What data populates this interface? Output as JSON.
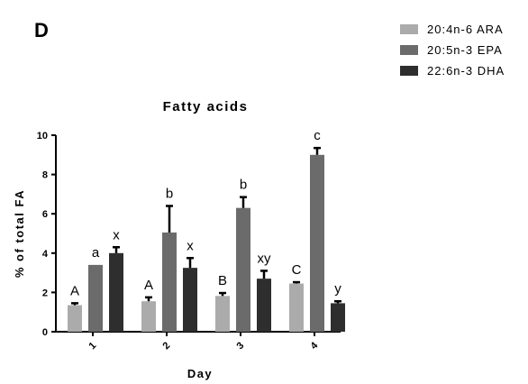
{
  "panel_label": "D",
  "chart_data": {
    "type": "bar",
    "title": "Fatty acids",
    "xlabel": "Day",
    "ylabel": "% of total FA",
    "categories": [
      "1",
      "2",
      "3",
      "4"
    ],
    "ylim": [
      0,
      10
    ],
    "yticks": [
      "0",
      "2",
      "4",
      "6",
      "8",
      "10"
    ],
    "grid": false,
    "legend_position": "top-right",
    "series": [
      {
        "name": "20:4n-6 ARA",
        "color": "#ababab",
        "values": [
          1.35,
          1.55,
          1.82,
          2.45
        ],
        "errors": [
          0.1,
          0.2,
          0.15,
          0.07
        ],
        "labels": [
          "A",
          "A",
          "B",
          "C"
        ]
      },
      {
        "name": "20:5n-3 EPA",
        "color": "#6b6b6b",
        "values": [
          3.4,
          5.05,
          6.3,
          9.0
        ],
        "errors": [
          0.0,
          1.35,
          0.55,
          0.35
        ],
        "labels": [
          "a",
          "b",
          "b",
          "c"
        ]
      },
      {
        "name": "22:6n-3 DHA",
        "color": "#2e2e2e",
        "values": [
          4.0,
          3.25,
          2.7,
          1.45
        ],
        "errors": [
          0.3,
          0.5,
          0.4,
          0.1
        ],
        "labels": [
          "x",
          "x",
          "xy",
          "y"
        ]
      }
    ]
  }
}
